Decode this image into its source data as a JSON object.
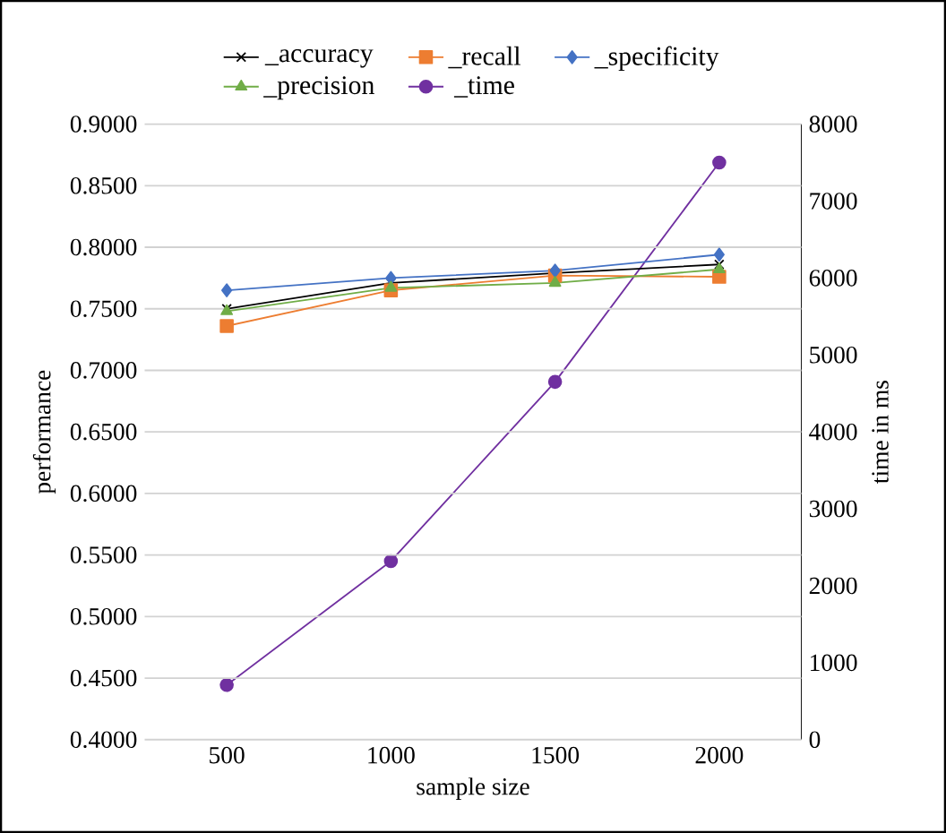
{
  "chart_data": {
    "type": "line",
    "categories": [
      "500",
      "1000",
      "1500",
      "2000"
    ],
    "xlabel": "sample size",
    "ylabel": "performance",
    "y2label": "time in ms",
    "series": [
      {
        "name": "_accuracy",
        "color": "#000000",
        "marker": "cross",
        "values": [
          0.75,
          0.771,
          0.779,
          0.786
        ]
      },
      {
        "name": "_recall",
        "color": "#ed7d31",
        "marker": "square",
        "values": [
          0.736,
          0.765,
          0.777,
          0.776
        ]
      },
      {
        "name": "_specificity",
        "color": "#4472c4",
        "marker": "diamond",
        "values": [
          0.765,
          0.775,
          0.781,
          0.794
        ]
      },
      {
        "name": "_precision",
        "color": "#70ad47",
        "marker": "triangle",
        "values": [
          0.748,
          0.767,
          0.771,
          0.782
        ]
      },
      {
        "name": "_time",
        "color": "#7030a0",
        "marker": "circle",
        "axis": "y2",
        "values": [
          710,
          2320,
          4650,
          7500
        ]
      }
    ],
    "ylim": [
      0.4,
      0.9
    ],
    "yticks": [
      {
        "value": 0.4,
        "label": "0.4000"
      },
      {
        "value": 0.45,
        "label": "0.4500"
      },
      {
        "value": 0.5,
        "label": "0.5000"
      },
      {
        "value": 0.55,
        "label": "0.5500"
      },
      {
        "value": 0.6,
        "label": "0.6000"
      },
      {
        "value": 0.65,
        "label": "0.6500"
      },
      {
        "value": 0.7,
        "label": "0.7000"
      },
      {
        "value": 0.75,
        "label": "0.7500"
      },
      {
        "value": 0.8,
        "label": "0.8000"
      },
      {
        "value": 0.85,
        "label": "0.8500"
      },
      {
        "value": 0.9,
        "label": "0.9000"
      }
    ],
    "y2lim": [
      0,
      8000
    ],
    "y2ticks": [
      0,
      1000,
      2000,
      3000,
      4000,
      5000,
      6000,
      7000,
      8000
    ],
    "grid": "y",
    "legend": "top"
  }
}
